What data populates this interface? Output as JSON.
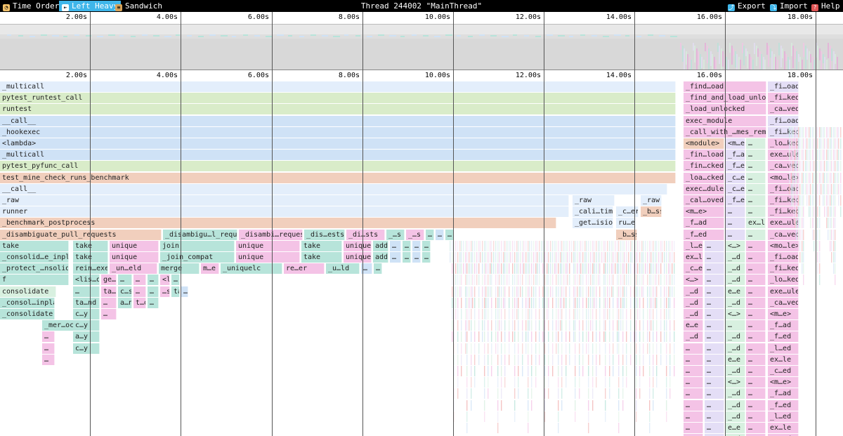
{
  "toolbar": {
    "buttons": [
      {
        "label": "Time Order",
        "icon": "clock-icon",
        "active": false
      },
      {
        "label": "Left Heavy",
        "icon": "left-heavy-icon",
        "active": true
      },
      {
        "label": "Sandwich",
        "icon": "sandwich-icon",
        "active": false
      }
    ],
    "title": "Thread 244002 \"MainThread\"",
    "right_buttons": [
      {
        "label": "Export",
        "icon": "export-icon"
      },
      {
        "label": "Import",
        "icon": "import-icon"
      },
      {
        "label": "Help",
        "icon": "help-icon"
      }
    ]
  },
  "axis": {
    "ticks": [
      "2.00s",
      "4.00s",
      "6.00s",
      "8.00s",
      "10.00s",
      "12.00s",
      "14.00s",
      "16.00s",
      "18.00s"
    ]
  },
  "colors": {
    "green": "#d9ecc9",
    "blue": "#cfe2f6",
    "lightblue": "#e3eefb",
    "orange": "#f1cfbd",
    "pink": "#f4c3e6",
    "teal": "#b7e4da",
    "palegreen": "#d8f0e0",
    "lavender": "#e4def6"
  },
  "flame": {
    "rows": [
      {
        "label": "_multicall",
        "labels_right": [
          "_find…oad",
          "_fi…oad"
        ]
      },
      {
        "label": "pytest_runtest_call",
        "labels_right": [
          "_find_and_load_unlocked",
          "_fi…ked"
        ]
      },
      {
        "label": "runtest",
        "labels_right": [
          "_load_unlocked",
          "_ca…ved"
        ]
      },
      {
        "label": "__call__",
        "labels_right": [
          "exec_module",
          "_fi…oad"
        ]
      },
      {
        "label": "_hookexec",
        "labels_right": [
          "_call_with_…mes_removed",
          "_fi…ked"
        ]
      },
      {
        "label": "<lambda>",
        "labels_right": [
          "<module>",
          "<m…e>",
          "…",
          "_lo…ked"
        ]
      },
      {
        "label": "_multicall",
        "labels_right": [
          "_fin…load",
          "_f…ad",
          "…",
          "exe…ule"
        ]
      },
      {
        "label": "pytest_pyfunc_call",
        "labels_right": [
          "_fin…cked",
          "_f…ed",
          "…",
          "_ca…ved"
        ]
      },
      {
        "label": "test_mine_check_runs_benchmark",
        "labels_right": [
          "_loa…cked",
          "_c…ed",
          "…",
          "<mo…le>"
        ]
      },
      {
        "label": "__call__",
        "labels_right": [
          "exec…dule",
          "_c…ed",
          "…",
          "_fi…oad"
        ]
      },
      {
        "label": "_raw",
        "mid": [
          "_raw",
          "_raw"
        ],
        "labels_right": [
          "_cal…oved",
          "_f…ed",
          "…",
          "_fi…ked"
        ]
      },
      {
        "label": "runner",
        "mid": [
          "_cali…timer",
          "_c…er",
          "_b…ss"
        ],
        "labels_right": [
          "<m…e>",
          "…",
          "…",
          "_fi…ked"
        ]
      },
      {
        "label": "_benchmark_postprocess",
        "mid": [
          "_get…ision",
          "ru…er"
        ],
        "labels_right": [
          "_f…ad",
          "…",
          "ex…le",
          "exe…ule"
        ]
      },
      {
        "label": "_disambiguate_pull_requests",
        "segments": [
          "_disambigu…l_requests",
          "_disambi…requests",
          "_dis…ests",
          "_di…sts",
          "_…s",
          "_…s",
          "…",
          "…",
          "…"
        ],
        "mid": [
          "_b…ss"
        ],
        "labels_right": [
          "_f…ed",
          "…",
          "…",
          "_ca…ved"
        ]
      },
      {
        "label": "take",
        "segments": [
          "take",
          "unique",
          "join",
          "unique",
          "take",
          "unique",
          "add",
          "…",
          "…",
          "…",
          "…"
        ],
        "labels_right": [
          "_l…ed",
          "…",
          "<…>",
          "…",
          "<mo…le>"
        ]
      },
      {
        "label": "_consolid…e_inplace",
        "segments": [
          "take",
          "unique",
          "_join_compat",
          "unique",
          "take",
          "unique",
          "add",
          "…",
          "…",
          "…",
          "…"
        ],
        "labels_right": [
          "ex…le",
          "…",
          "_…d",
          "…",
          "_fi…oad"
        ]
      },
      {
        "label": "_protect_…nsolidate",
        "segments": [
          "rein…exer",
          "_un…eld",
          "merge",
          "m…e",
          "_uniquelc",
          "re…er",
          "_u…ld",
          "…",
          "…"
        ],
        "labels_right": [
          "_c…ed",
          "…",
          "_…d",
          "…",
          "_fi…ked"
        ]
      },
      {
        "label": "f",
        "segments": [
          "<lis…omp>",
          "ge…lt",
          "…",
          "…",
          "…",
          "<l…p>",
          "…"
        ],
        "labels_right": [
          "<…>",
          "…",
          "_…d",
          "…",
          "_lo…ked"
        ]
      },
      {
        "label": "consolidate",
        "segments": [
          "…",
          "ta…nd",
          "c…s",
          "…",
          "…",
          "…s",
          "ta…nd",
          "…"
        ],
        "labels_right": [
          "_…d",
          "…",
          "e…e",
          "…",
          "exe…ule"
        ]
      },
      {
        "label": "_consol…inplace",
        "segments": [
          "ta…nd",
          "…",
          "a…n",
          "t…d",
          "…"
        ],
        "labels_right": [
          "_…d",
          "…",
          "_…d",
          "…",
          "_ca…ved"
        ]
      },
      {
        "label": "_consolidate",
        "segments": [
          "c…y",
          "…"
        ],
        "labels_right": [
          "_…d",
          "…",
          "<…>",
          "…",
          "<m…e>"
        ]
      },
      {
        "label": "_mer…ocks",
        "segments": [
          "c…y"
        ],
        "labels_right": [
          "e…e",
          "…",
          "…",
          "…",
          "_f…ad"
        ]
      },
      {
        "label": "…",
        "segments": [
          "a…y"
        ],
        "labels_right": [
          "_…d",
          "…",
          "_…d",
          "…",
          "_f…ed"
        ]
      },
      {
        "label": "…",
        "segments": [
          "c…y"
        ],
        "labels_right": [
          "…",
          "…",
          "_…d",
          "…",
          "_l…ed"
        ]
      },
      {
        "label": "…",
        "labels_right": [
          "…",
          "…",
          "e…e",
          "…",
          "ex…le"
        ]
      },
      {
        "label": "",
        "labels_right": [
          "…",
          "…",
          "_…d",
          "…",
          "_c…ed"
        ]
      },
      {
        "label": "",
        "labels_right": [
          "…",
          "…",
          "<…>",
          "…",
          "<m…e>"
        ]
      },
      {
        "label": "",
        "labels_right": [
          "…",
          "…",
          "_…d",
          "…",
          "_f…ad"
        ]
      },
      {
        "label": "",
        "labels_right": [
          "…",
          "…",
          "_…d",
          "…",
          "_f…ed"
        ]
      },
      {
        "label": "",
        "labels_right": [
          "…",
          "…",
          "_…d",
          "…",
          "_l…ed"
        ]
      },
      {
        "label": "",
        "labels_right": [
          "…",
          "…",
          "e…e",
          "…",
          "ex…le"
        ]
      },
      {
        "label": "",
        "labels_right": [
          "…",
          "…",
          "_…d",
          "…",
          "_c…ed"
        ]
      }
    ]
  }
}
